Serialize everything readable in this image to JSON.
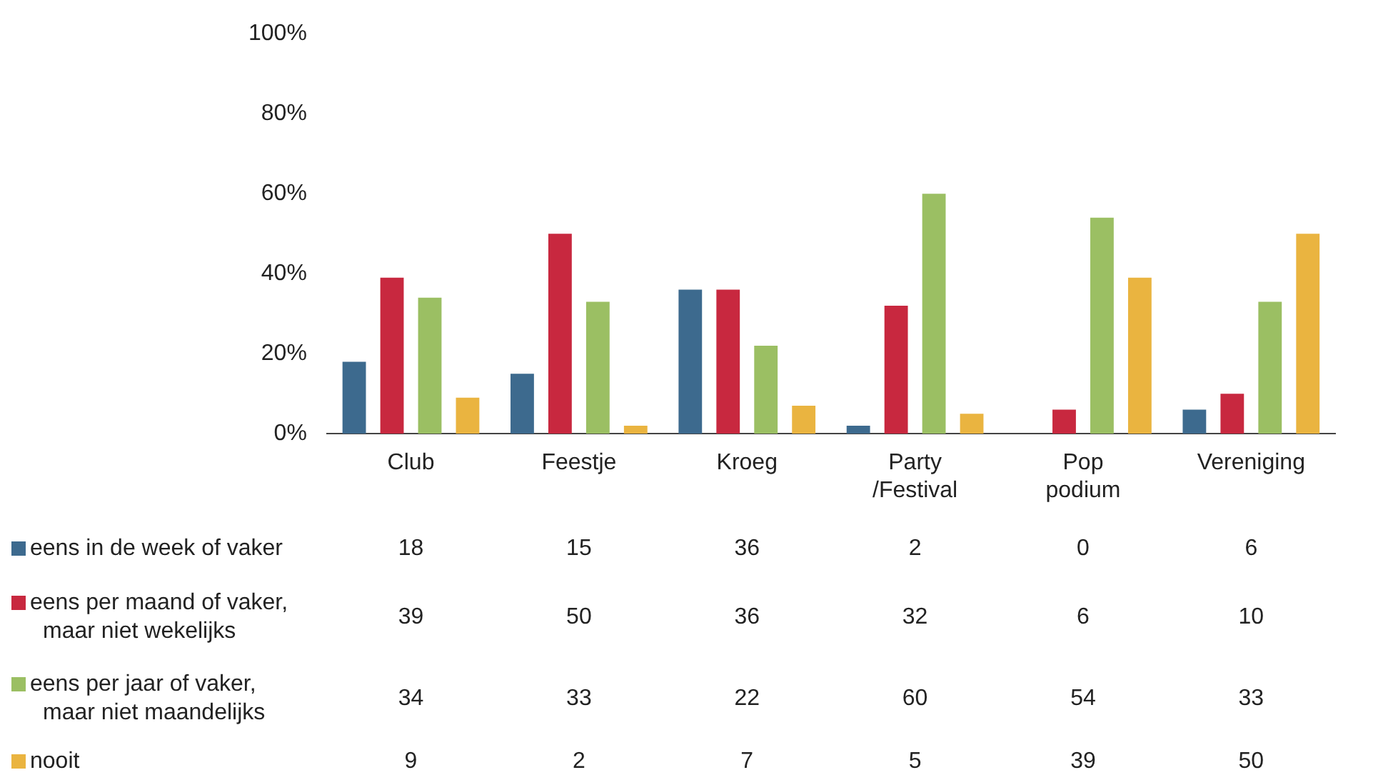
{
  "chart_data": {
    "type": "bar",
    "categories": [
      "Club",
      "Feestje",
      "Kroeg",
      "Party /Festival",
      "Pop podium",
      "Vereniging"
    ],
    "series": [
      {
        "name": "eens in de week of vaker",
        "color": "#3d6a8e",
        "values": [
          18,
          15,
          36,
          2,
          0,
          6
        ]
      },
      {
        "name": "eens per maand of vaker, maar niet wekelijks",
        "color": "#c8283f",
        "values": [
          39,
          50,
          36,
          32,
          6,
          10
        ]
      },
      {
        "name": "eens per jaar of vaker, maar niet maandelijks",
        "color": "#9bbf63",
        "values": [
          34,
          33,
          22,
          60,
          54,
          33
        ]
      },
      {
        "name": "nooit",
        "color": "#eab440",
        "values": [
          9,
          2,
          7,
          5,
          39,
          50
        ]
      }
    ],
    "ylim": [
      0,
      100
    ],
    "yticks": [
      {
        "value": 0,
        "label": "0%"
      },
      {
        "value": 20,
        "label": "20%"
      },
      {
        "value": 40,
        "label": "40%"
      },
      {
        "value": 60,
        "label": "60%"
      },
      {
        "value": 80,
        "label": "80%"
      },
      {
        "value": 100,
        "label": "100%"
      }
    ],
    "grid": false,
    "legend": "bottom",
    "data_labels": true
  }
}
